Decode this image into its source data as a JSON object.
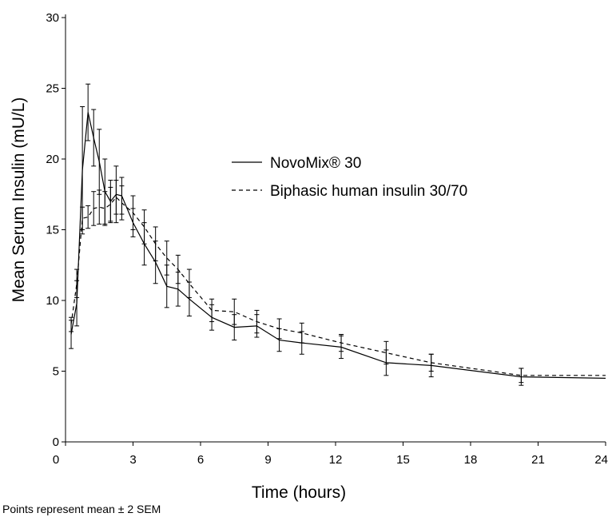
{
  "chart_data": {
    "type": "line",
    "ylabel": "Mean Serum Insulin (mU/L)",
    "xlabel": "Time (hours)",
    "footnote": "Points represent mean ± 2 SEM",
    "xlim": [
      0,
      24
    ],
    "ylim": [
      0,
      30
    ],
    "xticks": [
      0,
      3,
      6,
      9,
      12,
      15,
      18,
      21,
      24
    ],
    "yticks": [
      0,
      5,
      10,
      15,
      20,
      25,
      30
    ],
    "legend_position": "center-right",
    "series": [
      {
        "name": "NovoMix® 30",
        "style": "solid",
        "color": "#000000",
        "points": [
          {
            "x": 0.25,
            "y": 7.6,
            "err": 1.0
          },
          {
            "x": 0.5,
            "y": 9.8,
            "err": 1.6
          },
          {
            "x": 0.75,
            "y": 19.2,
            "err": 4.5
          },
          {
            "x": 1.0,
            "y": 23.3,
            "err": 2.0
          },
          {
            "x": 1.25,
            "y": 21.5,
            "err": 2.0
          },
          {
            "x": 1.5,
            "y": 19.8,
            "err": 2.3
          },
          {
            "x": 1.75,
            "y": 17.7,
            "err": 2.3
          },
          {
            "x": 2.0,
            "y": 17.0,
            "err": 1.5
          },
          {
            "x": 2.25,
            "y": 17.5,
            "err": 2.0
          },
          {
            "x": 2.5,
            "y": 17.4,
            "err": 1.3
          },
          {
            "x": 3.0,
            "y": 15.5,
            "err": 1.0
          },
          {
            "x": 3.5,
            "y": 14.0,
            "err": 1.5
          },
          {
            "x": 4.0,
            "y": 12.7,
            "err": 1.5
          },
          {
            "x": 4.5,
            "y": 11.0,
            "err": 1.5
          },
          {
            "x": 5.0,
            "y": 10.8,
            "err": 1.2
          },
          {
            "x": 5.5,
            "y": 10.1,
            "err": 1.2
          },
          {
            "x": 6.5,
            "y": 8.8,
            "err": 0.9
          },
          {
            "x": 7.5,
            "y": 8.1,
            "err": 0.9
          },
          {
            "x": 8.5,
            "y": 8.2,
            "err": 0.8
          },
          {
            "x": 9.5,
            "y": 7.2,
            "err": 0.8
          },
          {
            "x": 10.5,
            "y": 7.0,
            "err": 0.8
          },
          {
            "x": 12.25,
            "y": 6.7,
            "err": 0.8
          },
          {
            "x": 14.25,
            "y": 5.6,
            "err": 0.9
          },
          {
            "x": 16.25,
            "y": 5.4,
            "err": 0.8
          },
          {
            "x": 20.25,
            "y": 4.6,
            "err": 0.6
          },
          {
            "x": 24.0,
            "y": 4.5,
            "err": 0
          }
        ]
      },
      {
        "name": "Biphasic human insulin 30/70",
        "style": "dashed",
        "color": "#000000",
        "points": [
          {
            "x": 0.25,
            "y": 8.3,
            "err": 0.5
          },
          {
            "x": 0.5,
            "y": 11.2,
            "err": 1.0
          },
          {
            "x": 0.75,
            "y": 15.8,
            "err": 0.8
          },
          {
            "x": 1.0,
            "y": 15.9,
            "err": 0.8
          },
          {
            "x": 1.25,
            "y": 16.5,
            "err": 1.2
          },
          {
            "x": 1.5,
            "y": 16.6,
            "err": 1.2
          },
          {
            "x": 1.75,
            "y": 16.5,
            "err": 1.2
          },
          {
            "x": 2.0,
            "y": 16.8,
            "err": 1.2
          },
          {
            "x": 2.25,
            "y": 17.3,
            "err": 1.2
          },
          {
            "x": 2.5,
            "y": 16.9,
            "err": 1.2
          },
          {
            "x": 3.0,
            "y": 16.2,
            "err": 1.2
          },
          {
            "x": 3.5,
            "y": 15.2,
            "err": 1.2
          },
          {
            "x": 4.0,
            "y": 14.0,
            "err": 1.2
          },
          {
            "x": 4.5,
            "y": 13.0,
            "err": 1.2
          },
          {
            "x": 5.0,
            "y": 12.2,
            "err": 1.0
          },
          {
            "x": 5.5,
            "y": 11.2,
            "err": 1.0
          },
          {
            "x": 6.5,
            "y": 9.3,
            "err": 0.8
          },
          {
            "x": 7.5,
            "y": 9.2,
            "err": 0.9
          },
          {
            "x": 8.5,
            "y": 8.5,
            "err": 0.8
          },
          {
            "x": 9.5,
            "y": 8.0,
            "err": 0.7
          },
          {
            "x": 10.5,
            "y": 7.7,
            "err": 0.7
          },
          {
            "x": 12.25,
            "y": 7.0,
            "err": 0.6
          },
          {
            "x": 14.25,
            "y": 6.3,
            "err": 0.8
          },
          {
            "x": 16.25,
            "y": 5.6,
            "err": 0.6
          },
          {
            "x": 20.25,
            "y": 4.7,
            "err": 0.5
          },
          {
            "x": 24.0,
            "y": 4.7,
            "err": 0
          }
        ]
      }
    ]
  }
}
